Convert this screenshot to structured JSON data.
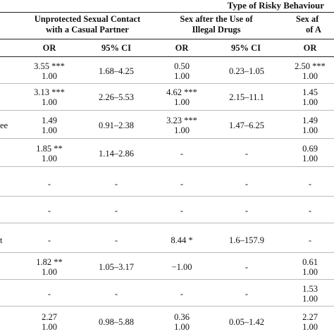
{
  "table": {
    "super_header": "Type of Risky Behaviour",
    "groups": [
      {
        "line1": "Unprotected Sexual Contact",
        "line2": "with a Casual Partner"
      },
      {
        "line1": "Sex after the Use of",
        "line2": "Illegal Drugs"
      },
      {
        "line1": "Sex af",
        "line2": "of A"
      }
    ],
    "sub_headers": [
      "OR",
      "95% CI",
      "OR",
      "95% CI",
      "OR"
    ],
    "rows": [
      {
        "label": "",
        "or1": [
          "3.55 ***",
          "1.00"
        ],
        "ci1": "1.68–4.25",
        "or2": [
          "0.50",
          "1.00"
        ],
        "ci2": "0.23–1.05",
        "or3": [
          "2.50 ***",
          "1.00"
        ]
      },
      {
        "label": "",
        "or1": [
          "3.13 ***",
          "1.00"
        ],
        "ci1": "2.26–5.53",
        "or2": [
          "4.62 ***",
          "1.00"
        ],
        "ci2": "2.15–11.1",
        "or3": [
          "1.45",
          "1.00"
        ]
      },
      {
        "label": "ee",
        "or1": [
          "1.49",
          "1.00"
        ],
        "ci1": "0.91–2.38",
        "or2": [
          "3.23 ***",
          "1.00"
        ],
        "ci2": "1.47–6.25",
        "or3": [
          "1.49",
          "1.00"
        ]
      },
      {
        "label": "",
        "or1": [
          "1.85 **",
          "1.00"
        ],
        "ci1": "1.14–2.86",
        "or2": [
          "-"
        ],
        "ci2": "-",
        "or3": [
          "0.69",
          "1.00"
        ]
      },
      {
        "label": "",
        "or1": [
          "-"
        ],
        "ci1": "-",
        "or2": [
          "-"
        ],
        "ci2": "-",
        "or3": [
          "-"
        ]
      },
      {
        "label": "",
        "or1": [
          "-"
        ],
        "ci1": "-",
        "or2": [
          "-"
        ],
        "ci2": "-",
        "or3": [
          "-"
        ]
      },
      {
        "label": "t",
        "or1": [
          "-"
        ],
        "ci1": "-",
        "or2": [
          "8.44 *"
        ],
        "ci2": "1.6–157.9",
        "or3": [
          "-"
        ]
      },
      {
        "label": "",
        "or1": [
          "1.82 **",
          "1.00"
        ],
        "ci1": "1.05–3.17",
        "or2": [
          "−1.00"
        ],
        "ci2": "-",
        "or3": [
          "0.61",
          "1.00"
        ]
      },
      {
        "label": "",
        "or1": [
          "-"
        ],
        "ci1": "-",
        "or2": [
          "-"
        ],
        "ci2": "-",
        "or3": [
          "1.53",
          "1.00"
        ]
      },
      {
        "label": "",
        "or1": [
          "2.27",
          "1.00"
        ],
        "ci1": "0.98–5.88",
        "or2": [
          "0.36",
          "1.00"
        ],
        "ci2": "0.05–1.42",
        "or3": [
          "2.27",
          "1.00"
        ]
      }
    ]
  }
}
